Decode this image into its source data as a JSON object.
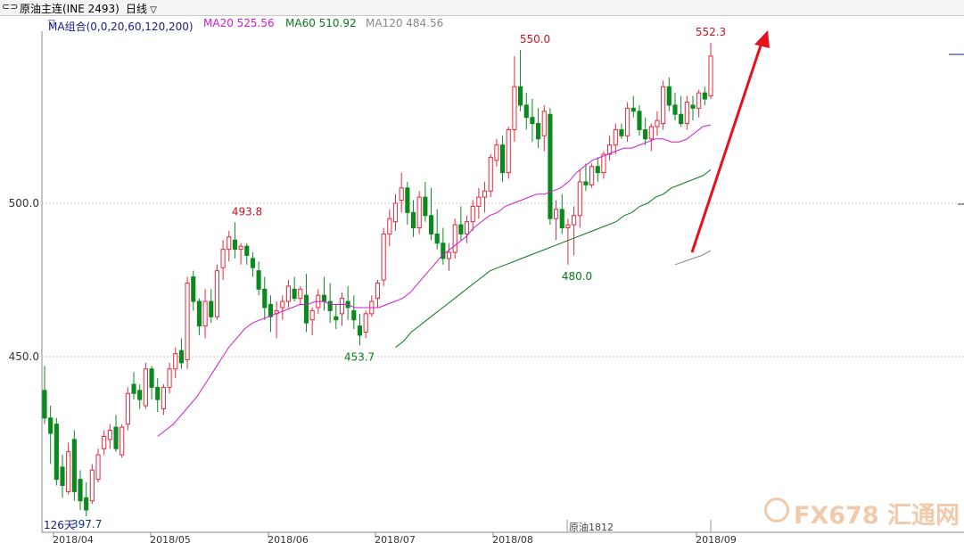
{
  "header": {
    "instrument_label": "原油主连(INE 2493)",
    "period_label": "日线",
    "ma_group_label": "MA组合(0,0,20,60,120,200)",
    "ma20_label": "MA20 525.56",
    "ma60_label": "MA60 510.92",
    "ma120_label": "MA120 484.56"
  },
  "colors": {
    "up": "#e8283c",
    "down": "#0a8a1e",
    "ma20": "#d21ad2",
    "ma60": "#0a7a1a",
    "ma120": "#888888",
    "arrow": "#e8101a",
    "dashed_grid": "#c8c8c8"
  },
  "footer": {
    "days_label": "126天",
    "contract_label": "原油1812"
  },
  "watermark": {
    "text": "FX678 汇通网"
  },
  "chart_data": {
    "type": "candlestick",
    "ylim": [
      387,
      560
    ],
    "y_ticks": [
      450,
      500
    ],
    "x_labels": [
      "2018/04",
      "2018/05",
      "2018/06",
      "2018/07",
      "2018/08",
      "2018/09"
    ],
    "annotations": [
      {
        "label": "397.7",
        "value": 397.7,
        "color": "down"
      },
      {
        "label": "493.8",
        "value": 493.8,
        "color": "up"
      },
      {
        "label": "453.7",
        "value": 453.7,
        "color": "down"
      },
      {
        "label": "550.0",
        "value": 550.0,
        "color": "up"
      },
      {
        "label": "480.0",
        "value": 480.0,
        "color": "down"
      },
      {
        "label": "552.3",
        "value": 552.3,
        "color": "up"
      }
    ],
    "candles": [
      [
        439,
        447,
        428,
        430
      ],
      [
        430,
        434,
        415,
        425
      ],
      [
        428,
        430,
        408,
        410
      ],
      [
        414,
        418,
        404,
        408
      ],
      [
        406,
        422,
        405,
        419
      ],
      [
        423,
        426,
        403,
        406
      ],
      [
        410,
        413,
        400,
        403
      ],
      [
        404,
        409,
        398,
        400
      ],
      [
        403,
        415,
        402,
        413
      ],
      [
        410,
        420,
        409,
        418
      ],
      [
        420,
        426,
        418,
        424
      ],
      [
        423,
        428,
        420,
        426
      ],
      [
        427,
        431,
        419,
        420
      ],
      [
        418,
        428,
        417,
        427
      ],
      [
        428,
        440,
        426,
        438
      ],
      [
        441,
        445,
        436,
        438
      ],
      [
        439,
        441,
        433,
        436
      ],
      [
        434,
        448,
        433,
        446
      ],
      [
        446,
        447,
        436,
        440
      ],
      [
        440,
        443,
        432,
        436
      ],
      [
        433,
        441,
        431,
        440
      ],
      [
        440,
        448,
        438,
        446
      ],
      [
        446,
        453,
        443,
        451
      ],
      [
        452,
        456,
        446,
        448
      ],
      [
        449,
        476,
        446,
        474
      ],
      [
        476,
        478,
        465,
        468
      ],
      [
        468,
        469,
        457,
        460
      ],
      [
        460,
        472,
        456,
        468
      ],
      [
        468,
        472,
        461,
        463
      ],
      [
        463,
        480,
        462,
        478
      ],
      [
        479,
        488,
        475,
        485
      ],
      [
        485,
        491,
        481,
        489
      ],
      [
        488,
        493.8,
        482,
        485
      ],
      [
        485,
        487,
        480,
        486
      ],
      [
        486,
        487,
        480,
        483
      ],
      [
        482,
        484,
        476,
        479
      ],
      [
        478,
        481,
        470,
        472
      ],
      [
        472,
        476,
        462,
        466
      ],
      [
        467,
        470,
        458,
        463
      ],
      [
        464,
        468,
        456,
        465
      ],
      [
        466,
        470,
        462,
        468
      ],
      [
        468,
        475,
        466,
        473
      ],
      [
        472,
        476,
        468,
        469
      ],
      [
        469,
        473,
        467,
        472
      ],
      [
        470,
        477,
        458,
        461
      ],
      [
        462,
        466,
        457,
        465
      ],
      [
        466,
        472,
        464,
        470
      ],
      [
        470,
        476,
        465,
        468
      ],
      [
        468,
        474,
        461,
        465
      ],
      [
        463,
        467,
        459,
        462
      ],
      [
        464,
        471,
        460,
        469
      ],
      [
        468,
        473,
        462,
        466
      ],
      [
        465,
        470,
        459,
        462
      ],
      [
        460,
        464,
        453.7,
        457
      ],
      [
        458,
        465,
        456,
        464
      ],
      [
        464,
        470,
        463,
        468
      ],
      [
        469,
        475,
        466,
        474
      ],
      [
        475,
        492,
        473,
        490
      ],
      [
        490,
        498,
        486,
        495
      ],
      [
        494,
        503,
        491,
        500
      ],
      [
        501,
        510,
        497,
        505
      ],
      [
        505,
        507,
        493,
        497
      ],
      [
        497,
        501,
        489,
        492
      ],
      [
        492,
        504,
        490,
        502
      ],
      [
        502,
        507,
        494,
        496
      ],
      [
        496,
        505,
        488,
        490
      ],
      [
        490,
        498,
        485,
        487
      ],
      [
        487,
        492,
        480,
        482
      ],
      [
        482,
        487,
        478,
        484
      ],
      [
        484,
        495,
        482,
        493
      ],
      [
        493,
        499,
        488,
        490
      ],
      [
        490,
        496,
        487,
        494
      ],
      [
        494,
        501,
        491,
        499
      ],
      [
        499,
        505,
        495,
        502
      ],
      [
        502,
        507,
        497,
        504
      ],
      [
        504,
        516,
        502,
        515
      ],
      [
        514,
        521,
        512,
        519
      ],
      [
        519,
        522,
        507,
        510
      ],
      [
        510,
        525,
        508,
        524
      ],
      [
        524,
        548,
        520,
        538
      ],
      [
        538,
        550,
        530,
        532
      ],
      [
        532,
        536,
        524,
        528
      ],
      [
        528,
        534,
        520,
        526
      ],
      [
        526,
        531,
        518,
        521
      ],
      [
        522,
        532,
        517,
        530
      ],
      [
        529,
        531,
        493,
        495
      ],
      [
        495,
        501,
        488,
        498
      ],
      [
        498,
        503,
        490,
        492
      ],
      [
        492,
        495,
        480,
        493
      ],
      [
        493,
        499,
        483,
        496
      ],
      [
        496,
        511,
        492,
        507
      ],
      [
        507,
        513,
        504,
        506
      ],
      [
        506,
        513,
        505,
        512
      ],
      [
        512,
        515,
        507,
        510
      ],
      [
        510,
        517,
        508,
        516
      ],
      [
        516,
        522,
        514,
        519
      ],
      [
        519,
        526,
        516,
        524
      ],
      [
        524,
        526,
        521,
        522
      ],
      [
        522,
        533,
        520,
        531
      ],
      [
        531,
        535,
        528,
        530
      ],
      [
        530,
        532,
        522,
        524
      ],
      [
        524,
        528,
        519,
        521
      ],
      [
        521,
        526,
        517,
        525
      ],
      [
        525,
        530,
        522,
        527
      ],
      [
        526,
        540,
        524,
        538
      ],
      [
        538,
        541,
        530,
        532
      ],
      [
        532,
        536,
        527,
        529
      ],
      [
        529,
        535,
        525,
        526
      ],
      [
        526,
        535,
        524,
        533
      ],
      [
        532,
        535,
        527,
        531
      ],
      [
        531,
        537,
        528,
        536
      ],
      [
        536,
        538,
        532,
        534
      ],
      [
        535,
        552.3,
        534,
        548
      ]
    ],
    "ma20_values": [
      424,
      426,
      428,
      431,
      434,
      437,
      441,
      445,
      449,
      453,
      456,
      459,
      461,
      462,
      463,
      464,
      465,
      466,
      467,
      467,
      468,
      468,
      467,
      467,
      467,
      466,
      466,
      466,
      466,
      467,
      468,
      469,
      471,
      474,
      477,
      480,
      483,
      485,
      487,
      489,
      492,
      494,
      496,
      497,
      499,
      500,
      501,
      502,
      503,
      503,
      504,
      505,
      507,
      510,
      512,
      514,
      515,
      516,
      517,
      518,
      518,
      519,
      520,
      521,
      521,
      520,
      520,
      521,
      523,
      525,
      525.56
    ],
    "ma60_values": [
      453,
      455,
      458,
      460,
      462,
      464,
      466,
      468,
      470,
      472,
      474,
      476,
      478,
      479,
      480,
      481,
      482,
      483,
      484,
      485,
      486,
      487,
      488,
      489,
      490,
      491,
      492,
      493,
      494,
      496,
      497,
      499,
      500,
      502,
      503,
      505,
      506,
      507,
      508,
      509,
      510.92
    ],
    "ma120_values": [
      480,
      481,
      482,
      483,
      484.56
    ]
  }
}
